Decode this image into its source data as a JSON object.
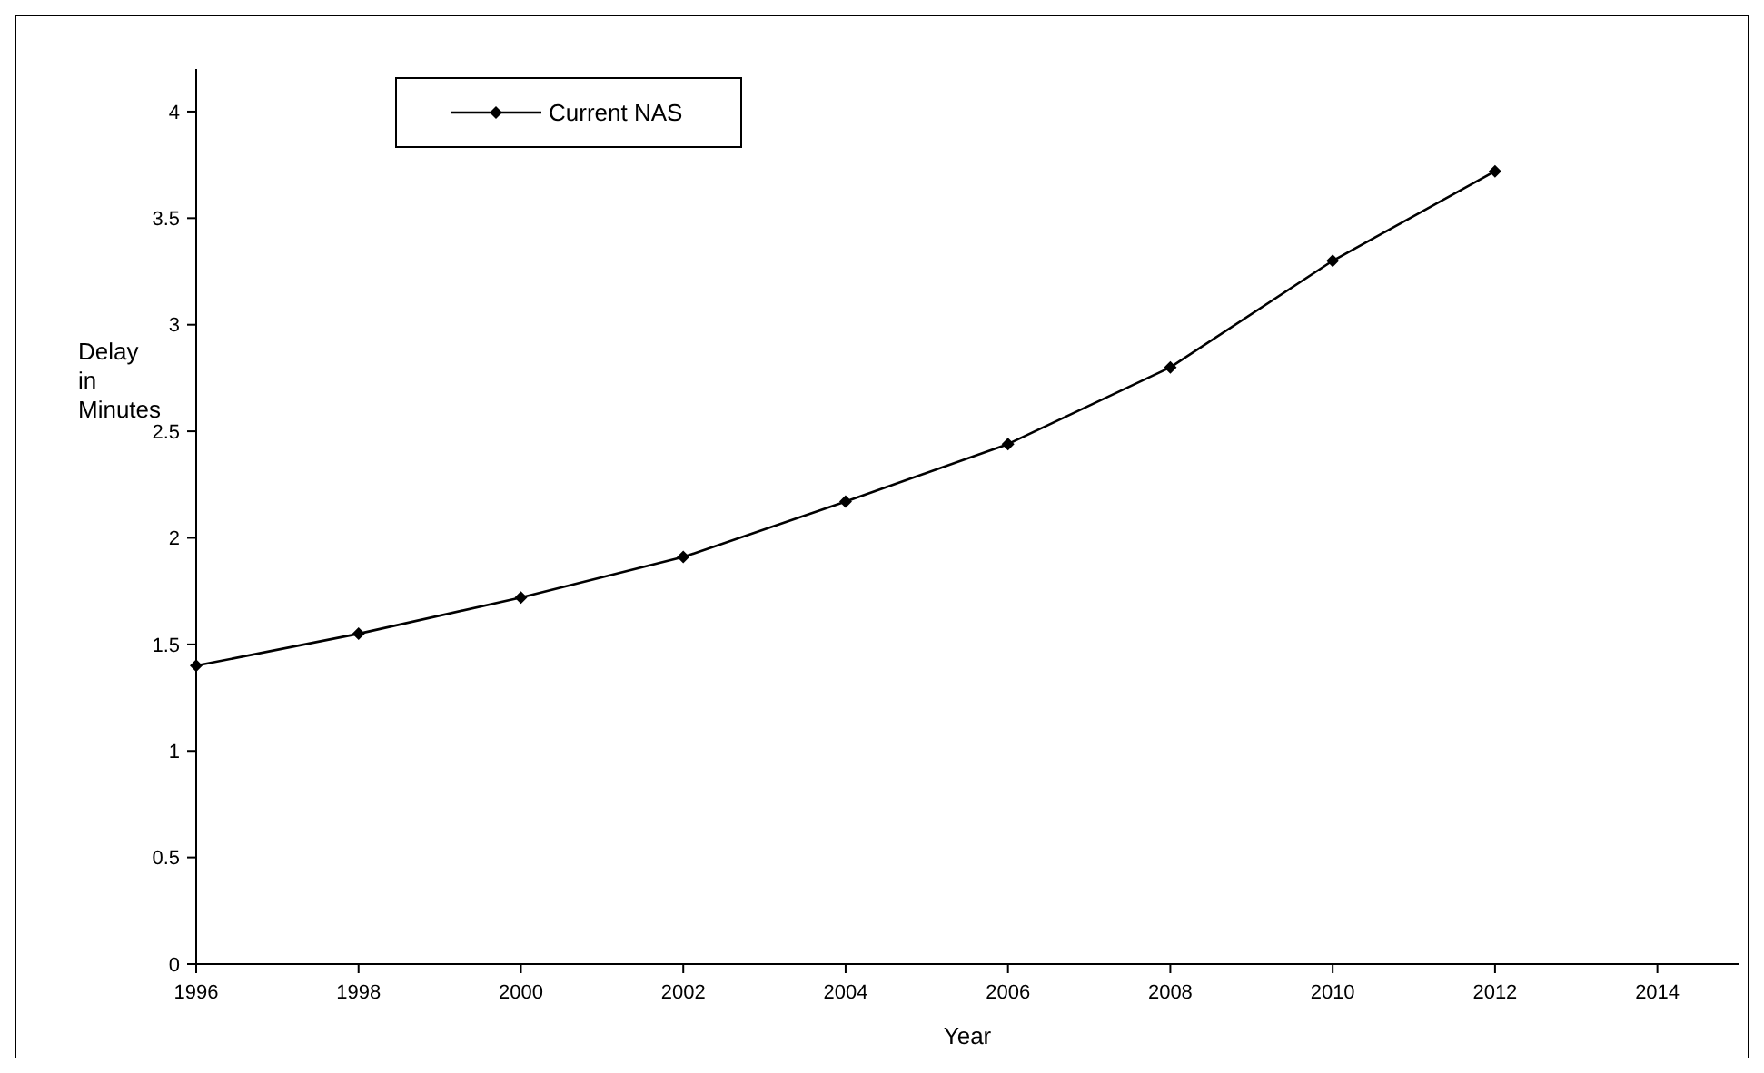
{
  "chart_data": {
    "type": "line",
    "xlabel": "Year",
    "ylabel": "Delay in Minutes",
    "x": [
      1996,
      1998,
      2000,
      2002,
      2004,
      2006,
      2008,
      2010,
      2012
    ],
    "series": [
      {
        "name": "Current NAS",
        "color": "#000000",
        "values": [
          1.4,
          1.55,
          1.72,
          1.91,
          2.17,
          2.44,
          2.8,
          3.3,
          3.72
        ]
      }
    ],
    "xlim": [
      1996,
      2015
    ],
    "xticks": [
      1996,
      1998,
      2000,
      2002,
      2004,
      2006,
      2008,
      2010,
      2012,
      2014
    ],
    "ylim": [
      0,
      4.2
    ],
    "yticks": [
      0,
      0.5,
      1,
      1.5,
      2,
      2.5,
      3,
      3.5,
      4
    ],
    "grid": false,
    "legend": "top left",
    "marker": "diamond",
    "line_style": "solid"
  }
}
